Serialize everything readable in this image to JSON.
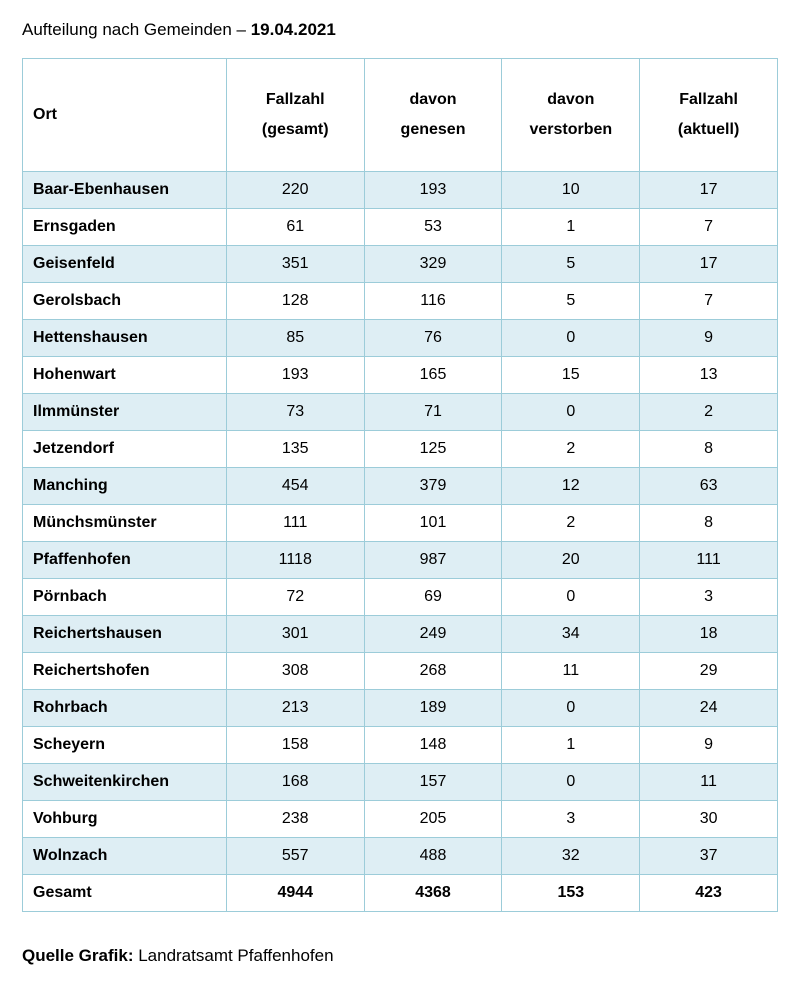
{
  "title_prefix": "Aufteilung nach Gemeinden – ",
  "title_date": "19.04.2021",
  "table": {
    "border_color": "#9cccd9",
    "stripe_color": "#deeef4",
    "background_color": "#ffffff",
    "text_color": "#000000",
    "font_family": "Arial",
    "header_fontsize": 16,
    "body_fontsize": 16,
    "columns": [
      {
        "key": "ort",
        "label_line1": "",
        "label_line2": "Ort",
        "align": "left"
      },
      {
        "key": "gesamt",
        "label_line1": "Fallzahl",
        "label_line2": "(gesamt)",
        "align": "center"
      },
      {
        "key": "genesen",
        "label_line1": "davon",
        "label_line2": "genesen",
        "align": "center"
      },
      {
        "key": "verstorben",
        "label_line1": "davon",
        "label_line2": "verstorben",
        "align": "center"
      },
      {
        "key": "aktuell",
        "label_line1": "Fallzahl",
        "label_line2": "(aktuell)",
        "align": "center"
      }
    ],
    "rows": [
      {
        "ort": "Baar-Ebenhausen",
        "gesamt": 220,
        "genesen": 193,
        "verstorben": 10,
        "aktuell": 17
      },
      {
        "ort": "Ernsgaden",
        "gesamt": 61,
        "genesen": 53,
        "verstorben": 1,
        "aktuell": 7
      },
      {
        "ort": "Geisenfeld",
        "gesamt": 351,
        "genesen": 329,
        "verstorben": 5,
        "aktuell": 17
      },
      {
        "ort": "Gerolsbach",
        "gesamt": 128,
        "genesen": 116,
        "verstorben": 5,
        "aktuell": 7
      },
      {
        "ort": "Hettenshausen",
        "gesamt": 85,
        "genesen": 76,
        "verstorben": 0,
        "aktuell": 9
      },
      {
        "ort": "Hohenwart",
        "gesamt": 193,
        "genesen": 165,
        "verstorben": 15,
        "aktuell": 13
      },
      {
        "ort": "Ilmmünster",
        "gesamt": 73,
        "genesen": 71,
        "verstorben": 0,
        "aktuell": 2
      },
      {
        "ort": "Jetzendorf",
        "gesamt": 135,
        "genesen": 125,
        "verstorben": 2,
        "aktuell": 8
      },
      {
        "ort": "Manching",
        "gesamt": 454,
        "genesen": 379,
        "verstorben": 12,
        "aktuell": 63
      },
      {
        "ort": "Münchsmünster",
        "gesamt": 111,
        "genesen": 101,
        "verstorben": 2,
        "aktuell": 8
      },
      {
        "ort": "Pfaffenhofen",
        "gesamt": 1118,
        "genesen": 987,
        "verstorben": 20,
        "aktuell": 111
      },
      {
        "ort": "Pörnbach",
        "gesamt": 72,
        "genesen": 69,
        "verstorben": 0,
        "aktuell": 3
      },
      {
        "ort": "Reichertshausen",
        "gesamt": 301,
        "genesen": 249,
        "verstorben": 34,
        "aktuell": 18
      },
      {
        "ort": "Reichertshofen",
        "gesamt": 308,
        "genesen": 268,
        "verstorben": 11,
        "aktuell": 29
      },
      {
        "ort": "Rohrbach",
        "gesamt": 213,
        "genesen": 189,
        "verstorben": 0,
        "aktuell": 24
      },
      {
        "ort": "Scheyern",
        "gesamt": 158,
        "genesen": 148,
        "verstorben": 1,
        "aktuell": 9
      },
      {
        "ort": "Schweitenkirchen",
        "gesamt": 168,
        "genesen": 157,
        "verstorben": 0,
        "aktuell": 11
      },
      {
        "ort": "Vohburg",
        "gesamt": 238,
        "genesen": 205,
        "verstorben": 3,
        "aktuell": 30
      },
      {
        "ort": "Wolnzach",
        "gesamt": 557,
        "genesen": 488,
        "verstorben": 32,
        "aktuell": 37
      }
    ],
    "total": {
      "ort": "Gesamt",
      "gesamt": 4944,
      "genesen": 4368,
      "verstorben": 153,
      "aktuell": 423
    }
  },
  "source_label": "Quelle Grafik: ",
  "source_value": "Landratsamt Pfaffenhofen"
}
